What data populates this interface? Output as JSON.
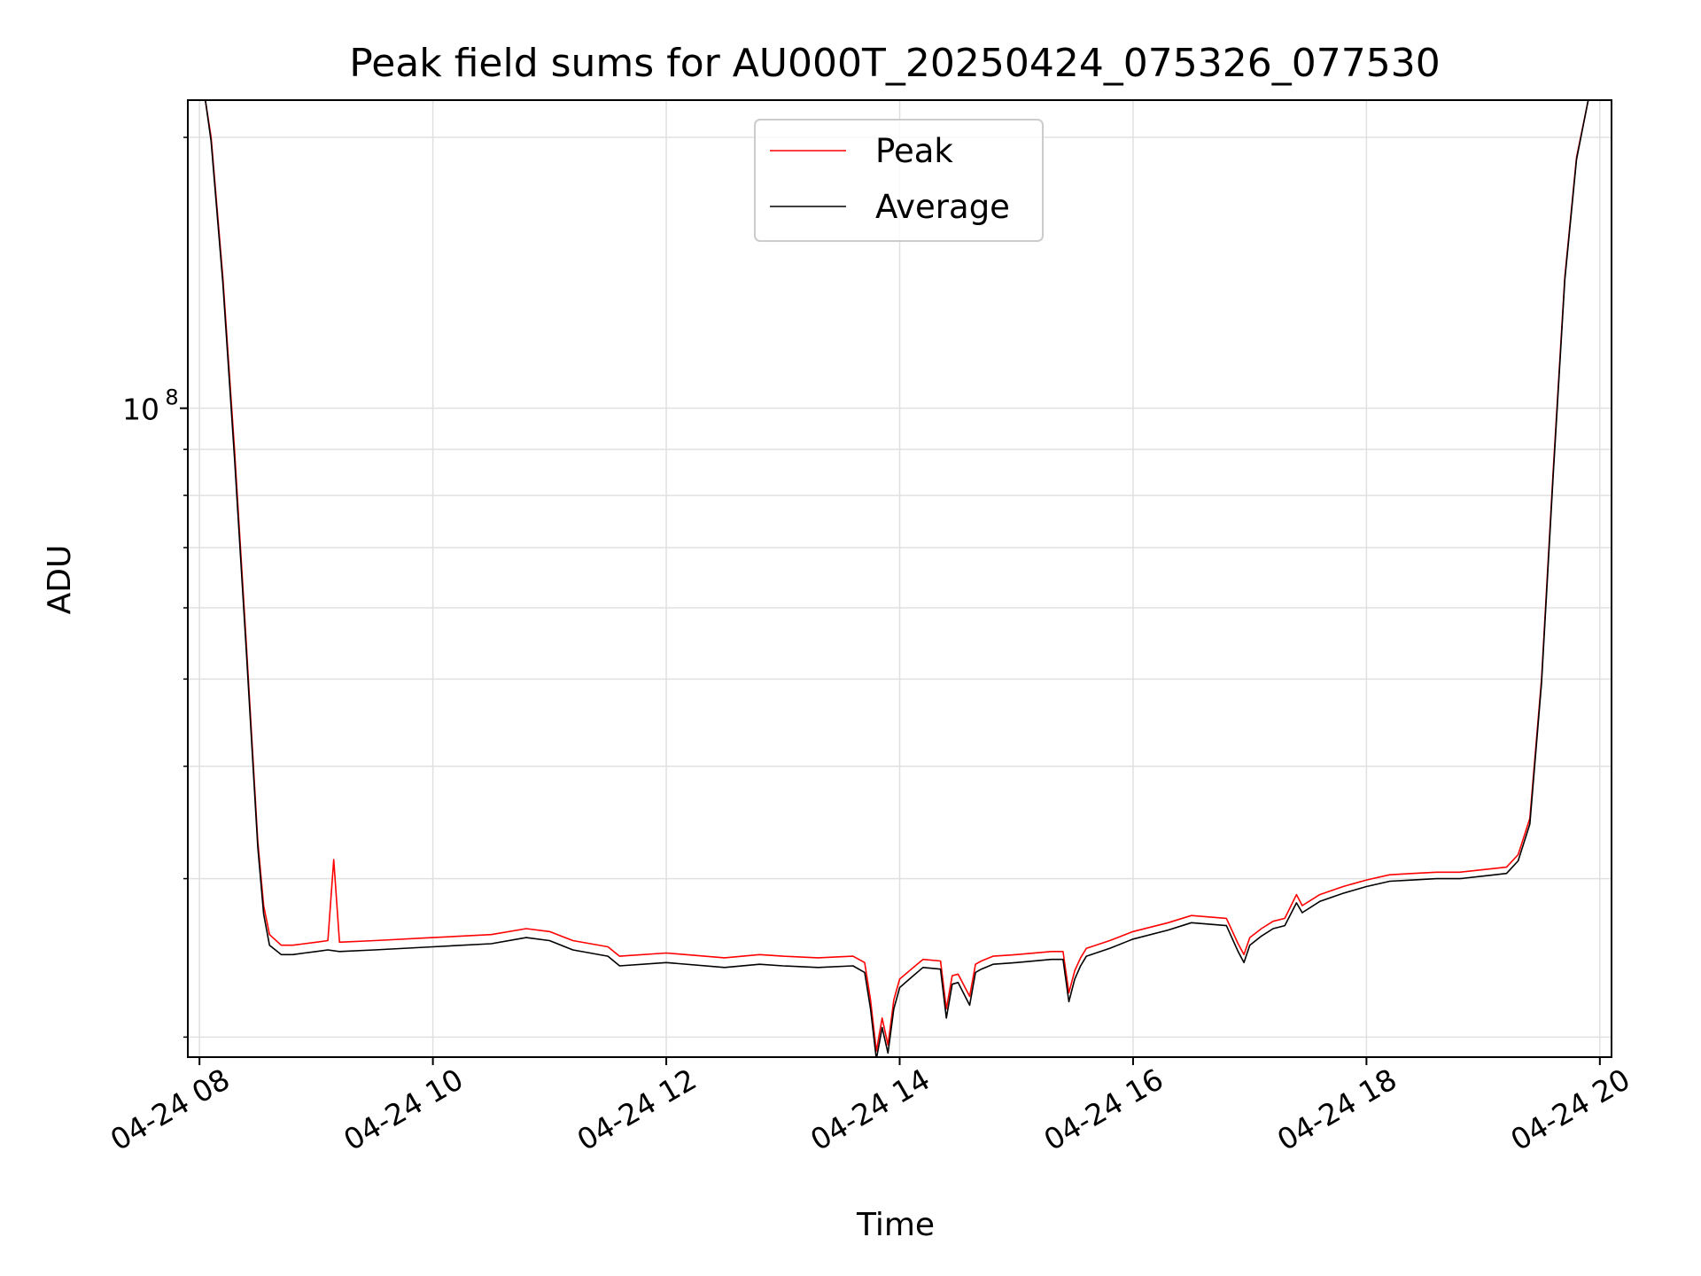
{
  "chart_data": {
    "type": "line",
    "title": "Peak field sums for AU000T_20250424_075326_077530",
    "xlabel": "Time",
    "ylabel": "ADU",
    "y_scale": "log",
    "y_tick_labels": [
      {
        "base": "10",
        "exp": "8",
        "value": 100000000
      }
    ],
    "ylim": [
      19000000,
      220000000
    ],
    "x_ticks": [
      "04-24 08",
      "04-24 10",
      "04-24 12",
      "04-24 14",
      "04-24 16",
      "04-24 18",
      "04-24 20"
    ],
    "x_tick_hours": [
      8,
      10,
      12,
      14,
      16,
      18,
      20
    ],
    "xlim_hours": [
      7.9,
      20.1
    ],
    "grid": true,
    "legend_position": "upper center",
    "colors": {
      "peak": "#ff0000",
      "average": "#000000",
      "grid": "#e0e0e0"
    },
    "series": [
      {
        "name": "Peak",
        "x_hours": [
          7.9,
          8.05,
          8.1,
          8.2,
          8.3,
          8.4,
          8.5,
          8.55,
          8.6,
          8.7,
          8.8,
          8.9,
          9.0,
          9.1,
          9.15,
          9.2,
          9.5,
          10.0,
          10.5,
          10.8,
          11.0,
          11.2,
          11.5,
          11.6,
          12.0,
          12.5,
          12.8,
          13.0,
          13.3,
          13.6,
          13.7,
          13.75,
          13.8,
          13.85,
          13.9,
          13.95,
          14.0,
          14.1,
          14.2,
          14.35,
          14.4,
          14.45,
          14.5,
          14.6,
          14.65,
          14.7,
          14.8,
          15.0,
          15.3,
          15.4,
          15.45,
          15.5,
          15.55,
          15.6,
          15.8,
          16.0,
          16.3,
          16.5,
          16.8,
          16.9,
          16.95,
          17.0,
          17.1,
          17.2,
          17.3,
          17.4,
          17.45,
          17.6,
          17.8,
          18.0,
          18.2,
          18.4,
          18.6,
          18.8,
          19.0,
          19.2,
          19.3,
          19.4,
          19.5,
          19.6,
          19.7,
          19.8,
          19.9,
          20.1
        ],
        "y": [
          220000000,
          220000000,
          200000000,
          140000000,
          90000000,
          55000000,
          33000000,
          28000000,
          26000000,
          25300000,
          25300000,
          25400000,
          25500000,
          25600000,
          31500000,
          25500000,
          25600000,
          25800000,
          26000000,
          26400000,
          26200000,
          25600000,
          25200000,
          24600000,
          24800000,
          24500000,
          24700000,
          24600000,
          24500000,
          24600000,
          24200000,
          22000000,
          19300000,
          21000000,
          19600000,
          22000000,
          23200000,
          23800000,
          24400000,
          24300000,
          21500000,
          23400000,
          23500000,
          22200000,
          24100000,
          24300000,
          24600000,
          24700000,
          24900000,
          24900000,
          22400000,
          23700000,
          24500000,
          25100000,
          25600000,
          26200000,
          26800000,
          27300000,
          27100000,
          25400000,
          24700000,
          25800000,
          26400000,
          26900000,
          27100000,
          28800000,
          28000000,
          28800000,
          29400000,
          29900000,
          30300000,
          30400000,
          30500000,
          30500000,
          30700000,
          30900000,
          31900000,
          35000000,
          50000000,
          85000000,
          140000000,
          190000000,
          220000000,
          220000000
        ]
      },
      {
        "name": "Average",
        "x_hours": [
          7.9,
          8.05,
          8.1,
          8.2,
          8.3,
          8.4,
          8.5,
          8.55,
          8.6,
          8.7,
          8.8,
          8.9,
          9.0,
          9.1,
          9.2,
          9.5,
          10.0,
          10.5,
          10.8,
          11.0,
          11.2,
          11.5,
          11.6,
          12.0,
          12.5,
          12.8,
          13.0,
          13.3,
          13.6,
          13.7,
          13.75,
          13.8,
          13.85,
          13.9,
          13.95,
          14.0,
          14.1,
          14.2,
          14.35,
          14.4,
          14.45,
          14.5,
          14.6,
          14.65,
          14.7,
          14.8,
          15.0,
          15.3,
          15.4,
          15.45,
          15.5,
          15.55,
          15.6,
          15.8,
          16.0,
          16.3,
          16.5,
          16.8,
          16.9,
          16.95,
          17.0,
          17.1,
          17.2,
          17.3,
          17.4,
          17.45,
          17.6,
          17.8,
          18.0,
          18.2,
          18.4,
          18.6,
          18.8,
          19.0,
          19.2,
          19.3,
          19.4,
          19.5,
          19.6,
          19.7,
          19.8,
          19.9,
          20.1
        ],
        "y": [
          220000000,
          220000000,
          198000000,
          138000000,
          88000000,
          54000000,
          32500000,
          27400000,
          25300000,
          24700000,
          24700000,
          24800000,
          24900000,
          25000000,
          24900000,
          25000000,
          25200000,
          25400000,
          25800000,
          25600000,
          25000000,
          24600000,
          24000000,
          24200000,
          23900000,
          24100000,
          24000000,
          23900000,
          24000000,
          23600000,
          21500000,
          18900000,
          20500000,
          19200000,
          21500000,
          22700000,
          23300000,
          23900000,
          23800000,
          21000000,
          22900000,
          23000000,
          21700000,
          23600000,
          23800000,
          24100000,
          24200000,
          24400000,
          24400000,
          21900000,
          23200000,
          24000000,
          24600000,
          25100000,
          25700000,
          26300000,
          26800000,
          26600000,
          24900000,
          24200000,
          25300000,
          25900000,
          26400000,
          26600000,
          28200000,
          27500000,
          28300000,
          28900000,
          29400000,
          29800000,
          29900000,
          30000000,
          30000000,
          30200000,
          30400000,
          31400000,
          34500000,
          49500000,
          84000000,
          139000000,
          189000000,
          220000000,
          220000000
        ]
      }
    ]
  }
}
